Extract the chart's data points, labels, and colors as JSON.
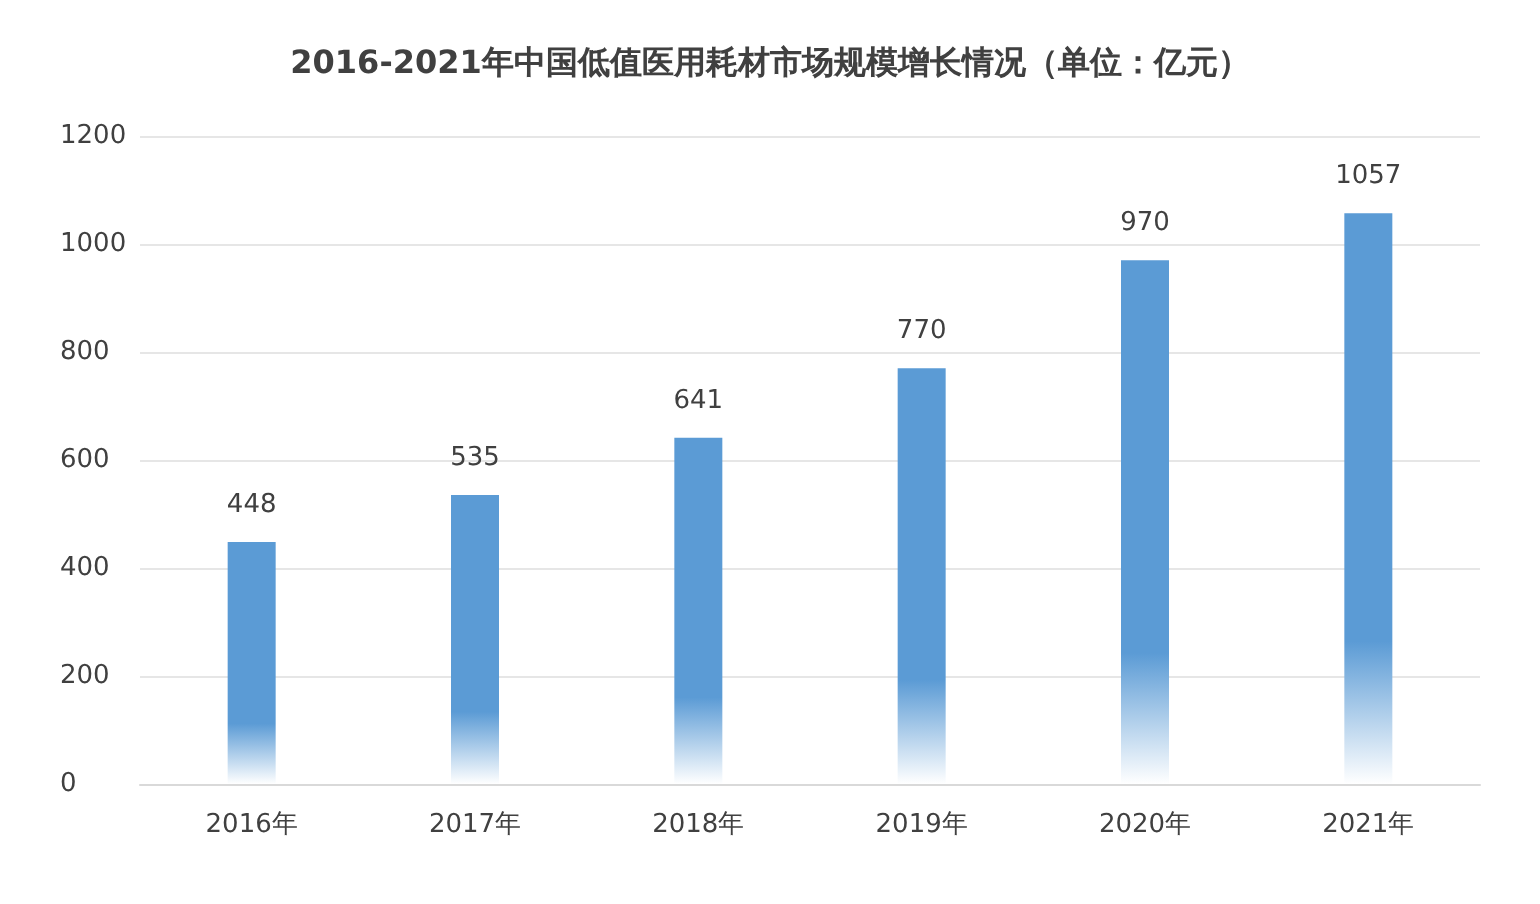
{
  "chart_data": {
    "type": "bar",
    "title": "2016-2021年中国低值医用耗材市场规模增长情况（单位：亿元）",
    "categories": [
      "2016年",
      "2017年",
      "2018年",
      "2019年",
      "2020年",
      "2021年"
    ],
    "values": [
      448,
      535,
      641,
      770,
      970,
      1057
    ],
    "color": "#5b9bd5",
    "ylim": [
      0,
      1200
    ],
    "yticks": [
      0,
      200,
      400,
      600,
      800,
      1000,
      1200
    ],
    "grid": "y",
    "data_labels": true
  }
}
